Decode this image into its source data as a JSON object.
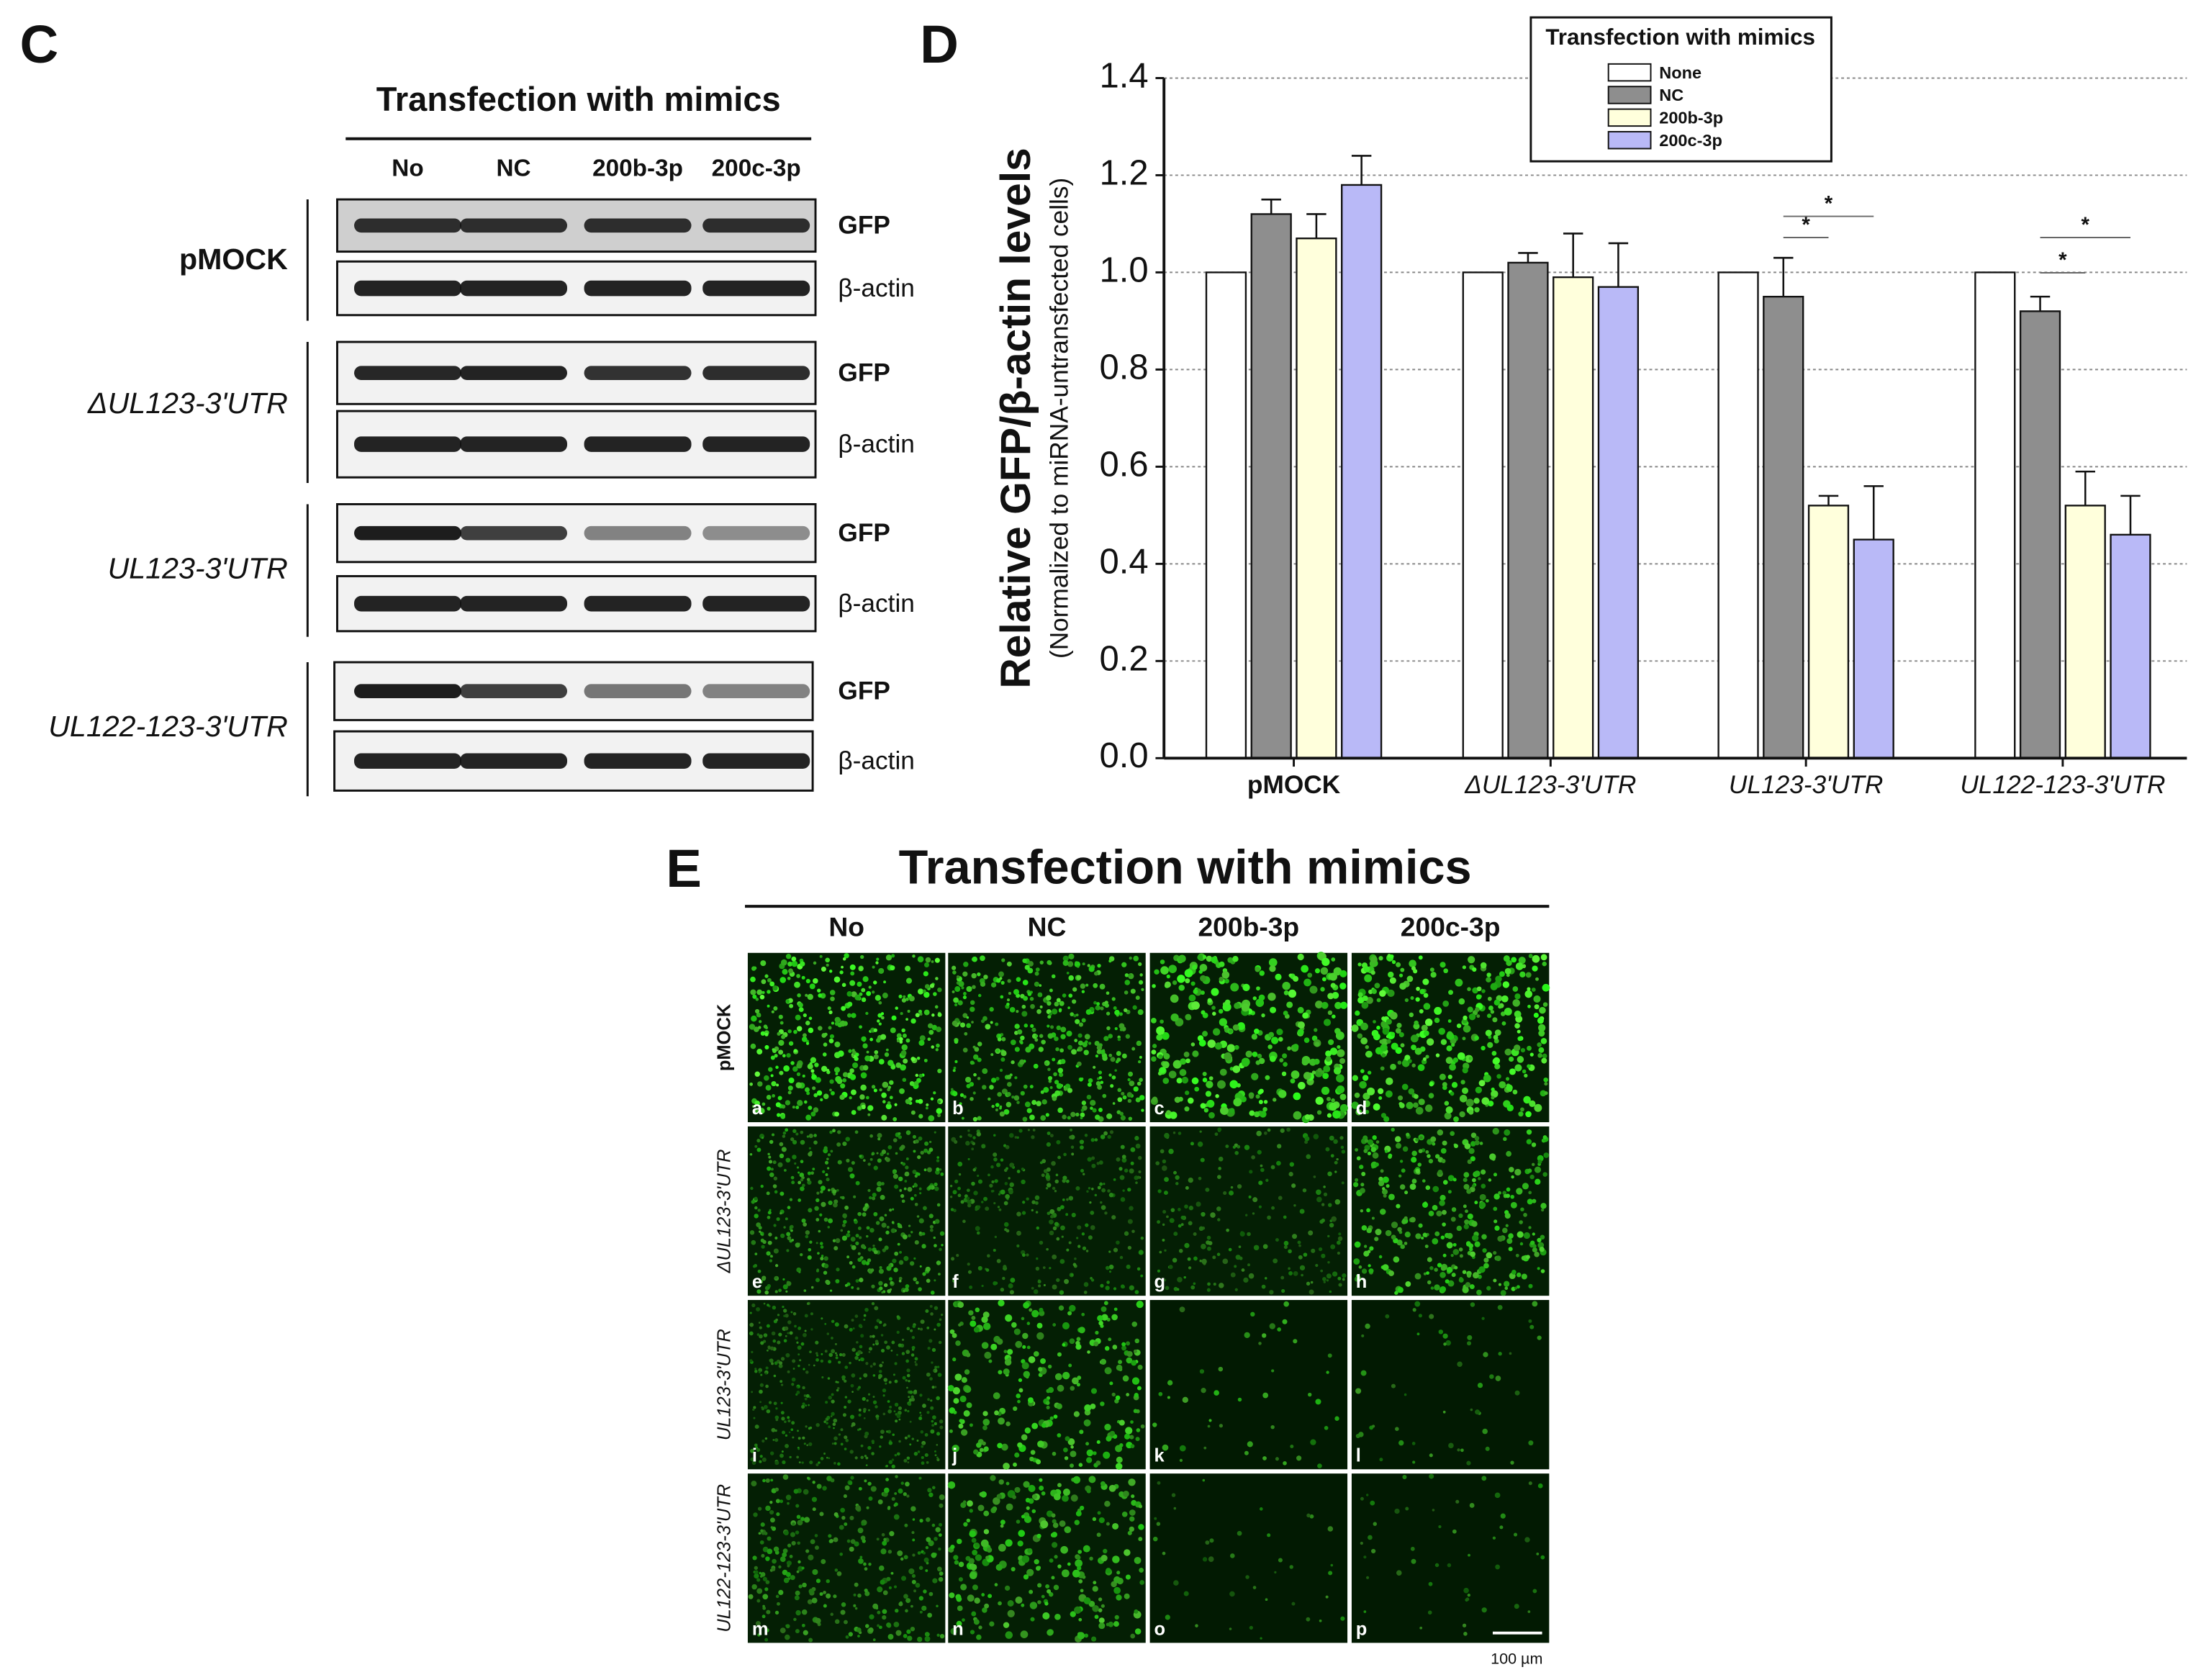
{
  "panel_c": {
    "label": "C",
    "title": "Transfection with mimics",
    "lanes": [
      "No",
      "NC",
      "200b-3p",
      "200c-3p"
    ],
    "rows": [
      {
        "label": "pMOCK",
        "bands": [
          "GFP",
          "β-actin"
        ]
      },
      {
        "label": "ΔUL123-3'UTR",
        "bands": [
          "GFP",
          "β-actin"
        ]
      },
      {
        "label": "UL123-3'UTR",
        "bands": [
          "GFP",
          "β-actin"
        ]
      },
      {
        "label": "UL122-123-3'UTR",
        "bands": [
          "GFP",
          "β-actin"
        ]
      }
    ]
  },
  "chart_data": {
    "type": "bar",
    "panel_label": "D",
    "ylabel": "Relative GFP/β-actin levels",
    "ylabel_sub": "(Normalized to miRNA-untransfected cells)",
    "legend_title": "Transfection with mimics",
    "categories": [
      "pMOCK",
      "ΔUL123-3'UTR",
      "UL123-3'UTR",
      "UL122-123-3'UTR"
    ],
    "series": [
      {
        "name": "None",
        "color": "#ffffff",
        "values": [
          1.0,
          1.0,
          1.0,
          1.0
        ]
      },
      {
        "name": "NC",
        "color": "#8e8e8e",
        "values": [
          1.12,
          1.02,
          0.95,
          0.92
        ],
        "errors": [
          0.03,
          0.02,
          0.08,
          0.03
        ]
      },
      {
        "name": "200b-3p",
        "color": "#ffffdc",
        "values": [
          1.07,
          0.99,
          0.52,
          0.52
        ],
        "errors": [
          0.05,
          0.09,
          0.02,
          0.07
        ]
      },
      {
        "name": "200c-3p",
        "color": "#b9b9f7",
        "values": [
          1.18,
          0.97,
          0.45,
          0.46
        ],
        "errors": [
          0.06,
          0.09,
          0.11,
          0.08
        ]
      }
    ],
    "ylim": [
      0,
      1.4
    ],
    "yticks": [
      {
        "value": 0,
        "label": "0.0"
      },
      0.2,
      0.4,
      0.6,
      0.8,
      {
        "value": 1,
        "label": "1.0"
      },
      1.2,
      1.4
    ],
    "grid": true,
    "annotations": [
      "*",
      "*",
      "*",
      "*"
    ]
  },
  "panel_e": {
    "label": "E",
    "title": "Transfection with mimics",
    "columns": [
      "No",
      "NC",
      "200b-3p",
      "200c-3p"
    ],
    "rows": [
      "pMOCK",
      "ΔUL123-3'UTR",
      "UL123-3'UTR",
      "UL122-123-3'UTR"
    ],
    "tile_labels": [
      "a",
      "b",
      "c",
      "d",
      "e",
      "f",
      "g",
      "h",
      "i",
      "j",
      "k",
      "l",
      "m",
      "n",
      "o",
      "p"
    ],
    "scale_bar": "100 µm"
  }
}
